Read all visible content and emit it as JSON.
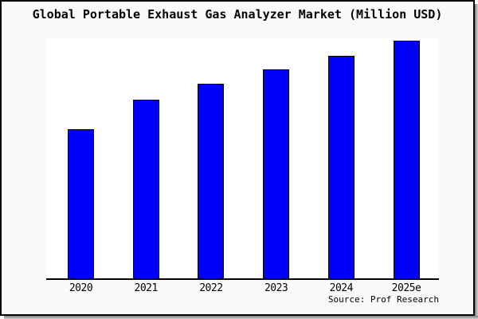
{
  "page": {
    "background_color": "#fafafa",
    "border_color": "#000000",
    "shadow_color": "#7d7d7d"
  },
  "chart": {
    "title": "Global Portable Exhaust Gas Analyzer Market (Million USD)",
    "source": "Source: Prof Research",
    "bar_color": "#0000fa",
    "bar_border_color": "#000000"
  },
  "chart_data": {
    "type": "bar",
    "title": "Global Portable Exhaust Gas Analyzer Market (Million USD)",
    "categories": [
      "2020",
      "2021",
      "2022",
      "2023",
      "2024",
      "2025e"
    ],
    "values": [
      188,
      225,
      245,
      263,
      280,
      299
    ],
    "values_unit": "relative bar height in px (no y-axis scale, ticks or gridlines shown)",
    "xlabel": "",
    "ylabel": "Million USD",
    "ylim": null,
    "grid": false,
    "legend": false,
    "y_axis_visible": false,
    "annotation": "Source: Prof Research"
  }
}
